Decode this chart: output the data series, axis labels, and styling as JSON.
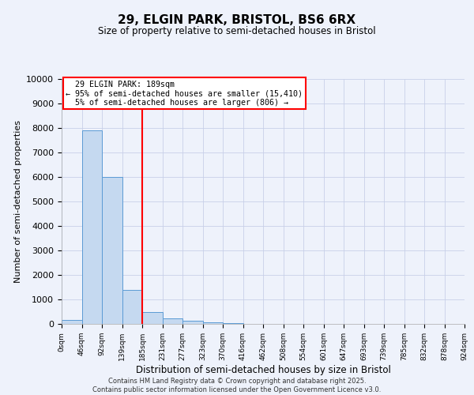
{
  "title": "29, ELGIN PARK, BRISTOL, BS6 6RX",
  "subtitle": "Size of property relative to semi-detached houses in Bristol",
  "xlabel": "Distribution of semi-detached houses by size in Bristol",
  "ylabel": "Number of semi-detached properties",
  "bin_labels": [
    "0sqm",
    "46sqm",
    "92sqm",
    "139sqm",
    "185sqm",
    "231sqm",
    "277sqm",
    "323sqm",
    "370sqm",
    "416sqm",
    "462sqm",
    "508sqm",
    "554sqm",
    "601sqm",
    "647sqm",
    "693sqm",
    "739sqm",
    "785sqm",
    "832sqm",
    "878sqm",
    "924sqm"
  ],
  "bar_values": [
    150,
    7900,
    6000,
    1400,
    500,
    230,
    130,
    60,
    20,
    8,
    4,
    2,
    1,
    0,
    0,
    0,
    0,
    0,
    0,
    0
  ],
  "bar_color": "#c5d9f0",
  "bar_edge_color": "#5b9bd5",
  "vline_x": 4.0,
  "vline_color": "red",
  "ylim": [
    0,
    10000
  ],
  "yticks": [
    0,
    1000,
    2000,
    3000,
    4000,
    5000,
    6000,
    7000,
    8000,
    9000,
    10000
  ],
  "annotation_text_line1": "29 ELGIN PARK: 189sqm",
  "annotation_text_line2": "← 95% of semi-detached houses are smaller (15,410)",
  "annotation_text_line3": "5% of semi-detached houses are larger (806) →",
  "footer1": "Contains HM Land Registry data © Crown copyright and database right 2025.",
  "footer2": "Contains public sector information licensed under the Open Government Licence v3.0.",
  "background_color": "#eef2fb",
  "grid_color": "#c8d0e8"
}
